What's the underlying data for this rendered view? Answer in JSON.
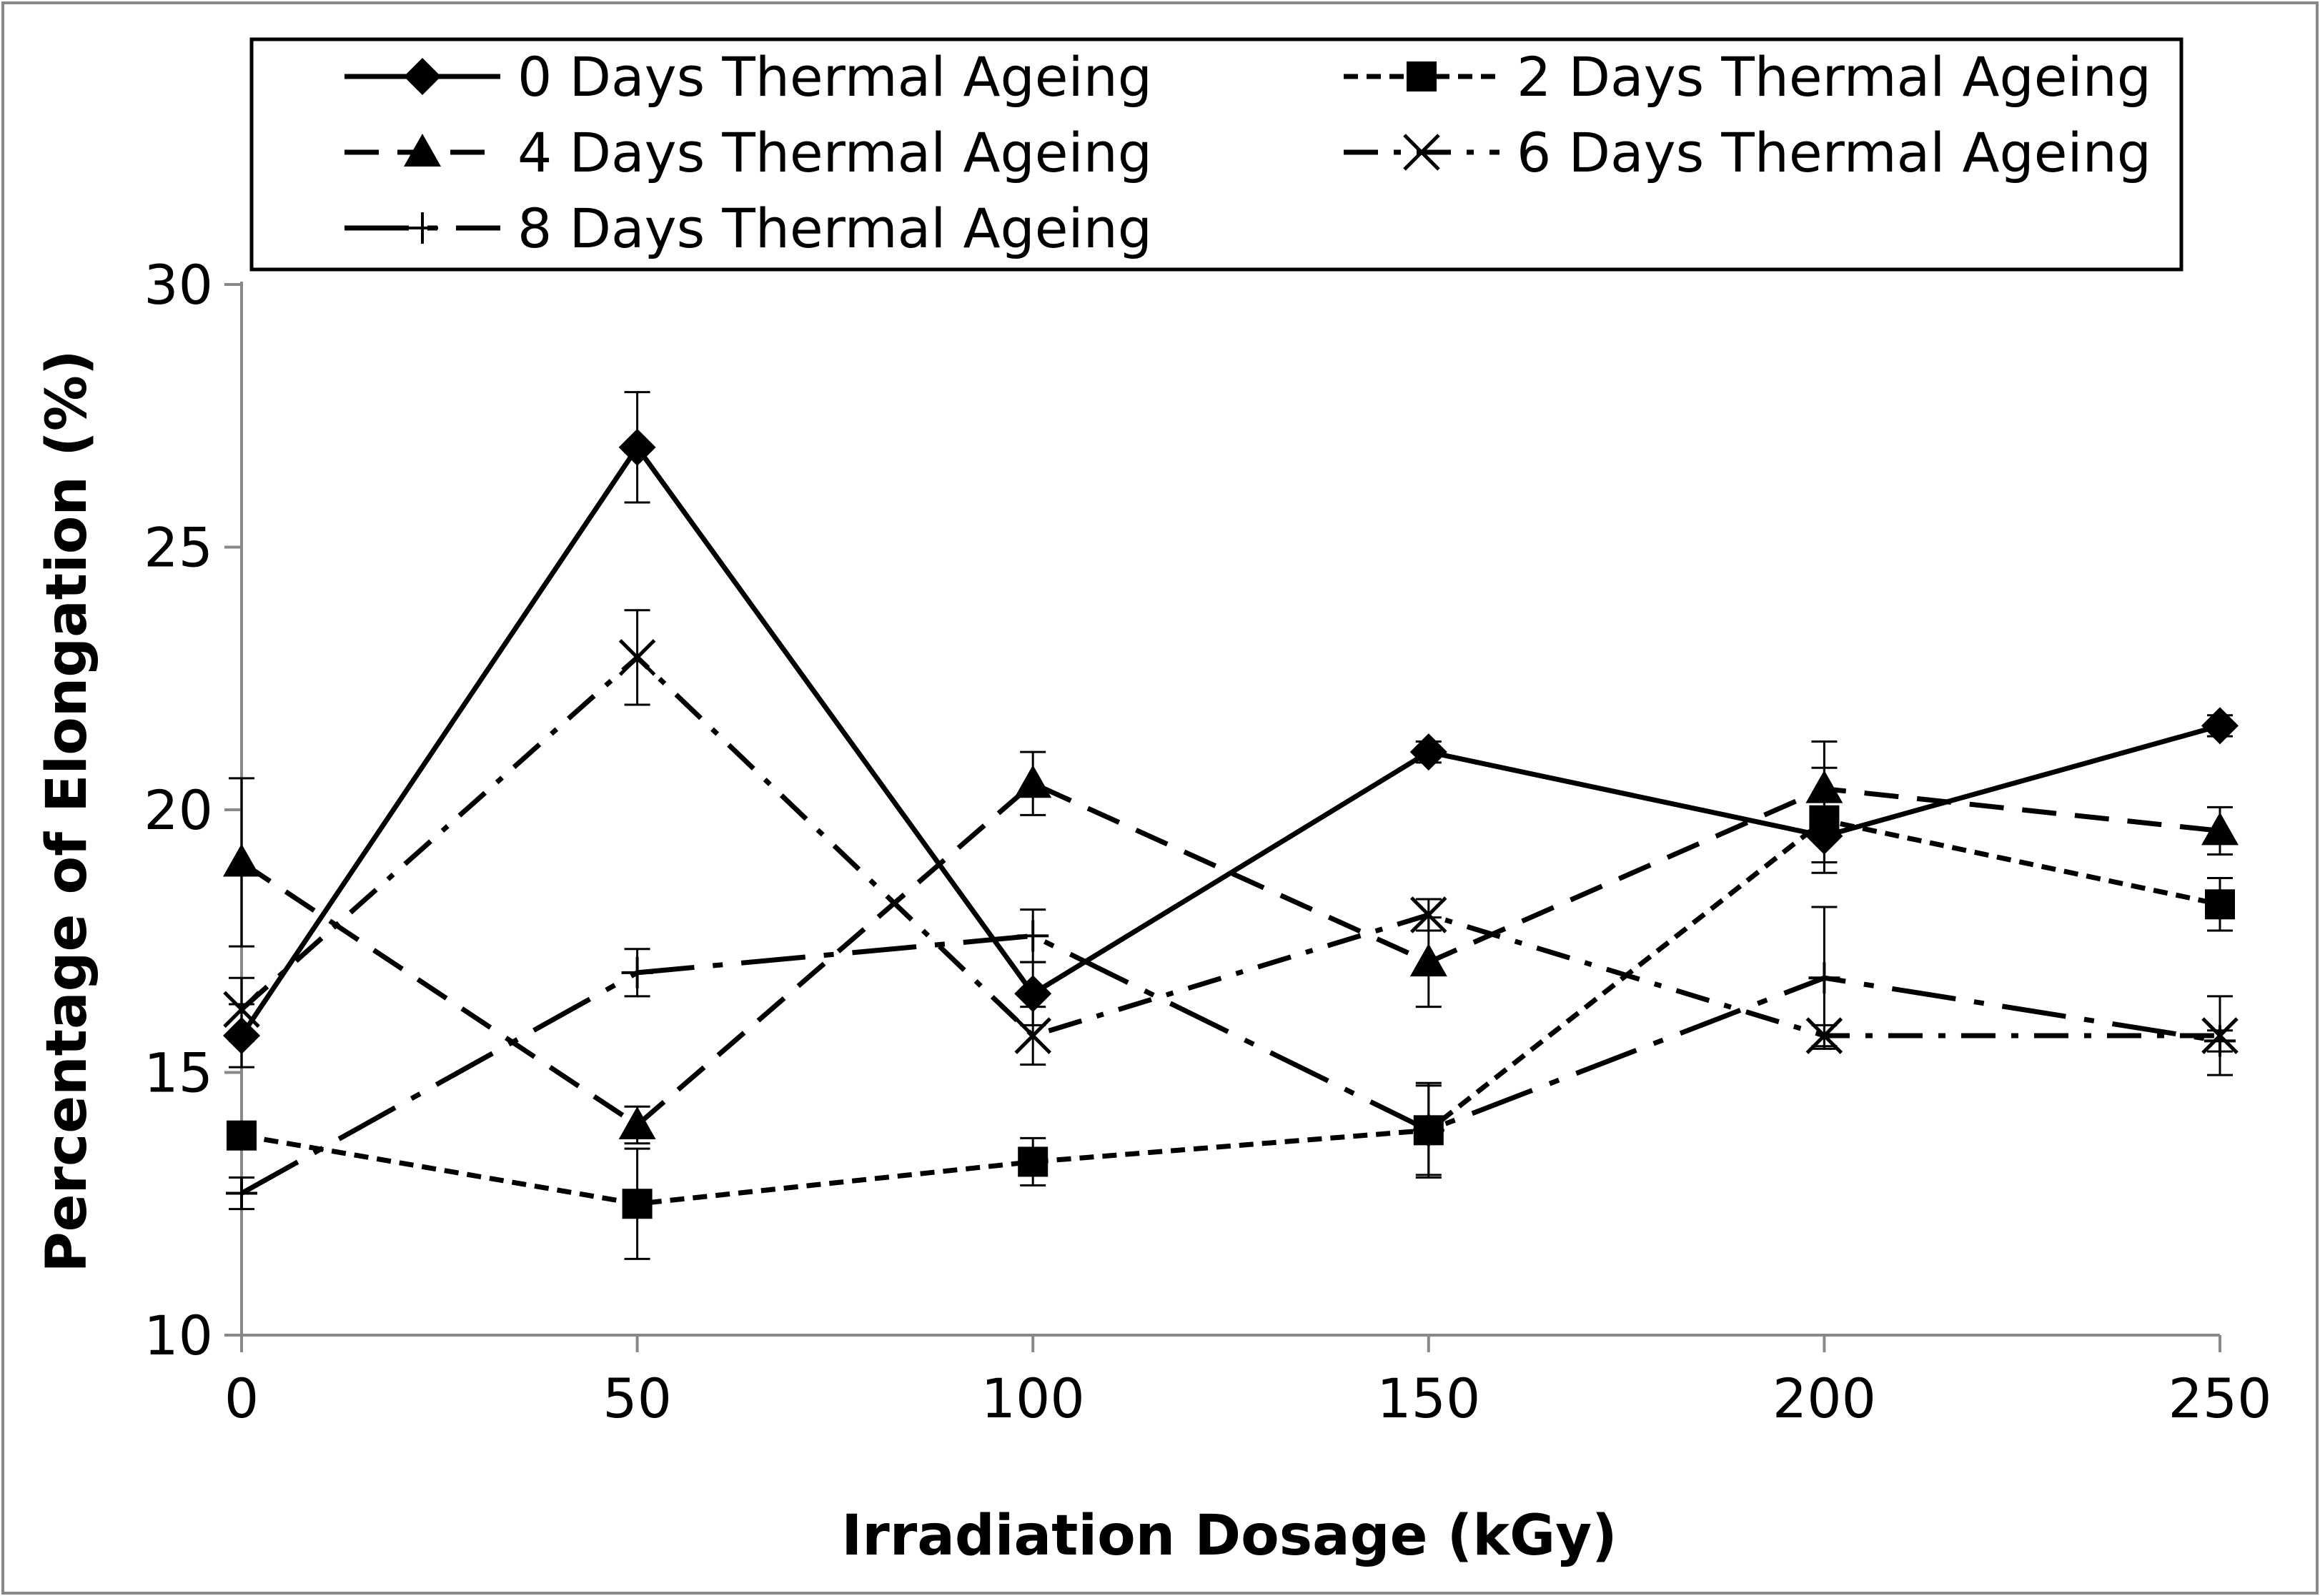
{
  "chart_data": {
    "type": "line",
    "xlabel": "Irradiation Dosage (kGy)",
    "ylabel": "Percentage of Elongation (%)",
    "x": [
      0,
      50,
      100,
      150,
      200,
      250
    ],
    "xlim": [
      0,
      250
    ],
    "ylim": [
      10,
      30
    ],
    "xticks": [
      0,
      50,
      100,
      150,
      200,
      250
    ],
    "yticks": [
      10,
      15,
      20,
      25,
      30
    ],
    "legend_position": "top",
    "series": [
      {
        "name": "0 Days Thermal Ageing",
        "marker": "diamond",
        "line": "solid",
        "values": [
          15.7,
          26.9,
          16.5,
          21.1,
          19.5,
          21.6
        ],
        "errors": [
          0.6,
          1.05,
          0.6,
          0.2,
          0.5,
          0.2
        ]
      },
      {
        "name": "2 Days Thermal Ageing",
        "marker": "square",
        "line": "short-dash",
        "values": [
          13.8,
          12.5,
          13.3,
          13.9,
          19.8,
          18.2
        ],
        "errors": [
          0.2,
          1.05,
          0.45,
          0.85,
          1.0,
          0.5
        ]
      },
      {
        "name": "4 Days Thermal Ageing",
        "marker": "triangle",
        "line": "long-dash",
        "values": [
          19.0,
          14.0,
          20.5,
          17.1,
          20.4,
          19.6
        ],
        "errors": [
          1.6,
          0.35,
          0.6,
          0.85,
          0.9,
          0.45
        ]
      },
      {
        "name": "6 Days Thermal Ageing",
        "marker": "x",
        "line": "dash-dot",
        "values": [
          16.2,
          22.9,
          15.7,
          18.0,
          15.7,
          15.7
        ],
        "errors": [
          0.6,
          0.9,
          0.55,
          0.3,
          0.2,
          0.75
        ]
      },
      {
        "name": "8 Days Thermal Ageing",
        "marker": "plus",
        "line": "long-dash-dot",
        "values": [
          12.7,
          16.9,
          17.6,
          13.9,
          16.8,
          15.6
        ],
        "errors": [
          0.3,
          0.45,
          0.5,
          0.9,
          1.35,
          0.2
        ]
      }
    ]
  }
}
